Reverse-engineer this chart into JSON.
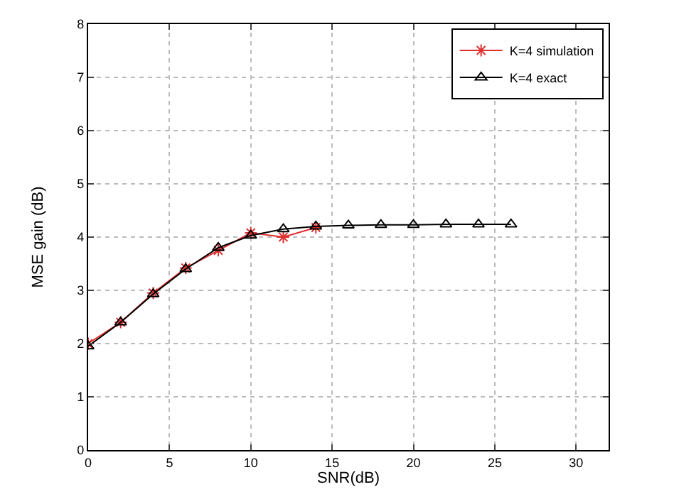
{
  "chart_data": {
    "type": "line",
    "xlabel": "SNR(dB)",
    "ylabel": "MSE gain (dB)",
    "xlim": [
      0,
      32
    ],
    "xticks": [
      0,
      5,
      10,
      15,
      20,
      25,
      30
    ],
    "ylim": [
      0,
      8
    ],
    "yticks": [
      0,
      1,
      2,
      3,
      4,
      5,
      6,
      7,
      8
    ],
    "grid": true,
    "legend": "top right",
    "series": [
      {
        "name": "K=4 simulation",
        "color": "#e03030",
        "marker": "cross",
        "x": [
          0,
          2,
          4,
          6,
          8,
          10,
          12,
          14
        ],
        "values": [
          2.0,
          2.4,
          2.95,
          3.42,
          3.75,
          4.08,
          4.0,
          4.18
        ]
      },
      {
        "name": "K=4 exact",
        "color": "#000000",
        "marker": "triangle",
        "x": [
          0,
          2,
          4,
          6,
          8,
          10,
          12,
          14,
          16,
          18,
          20,
          22,
          24,
          26
        ],
        "values": [
          1.95,
          2.4,
          2.93,
          3.4,
          3.8,
          4.03,
          4.15,
          4.2,
          4.22,
          4.23,
          4.23,
          4.24,
          4.24,
          4.24
        ]
      }
    ]
  }
}
